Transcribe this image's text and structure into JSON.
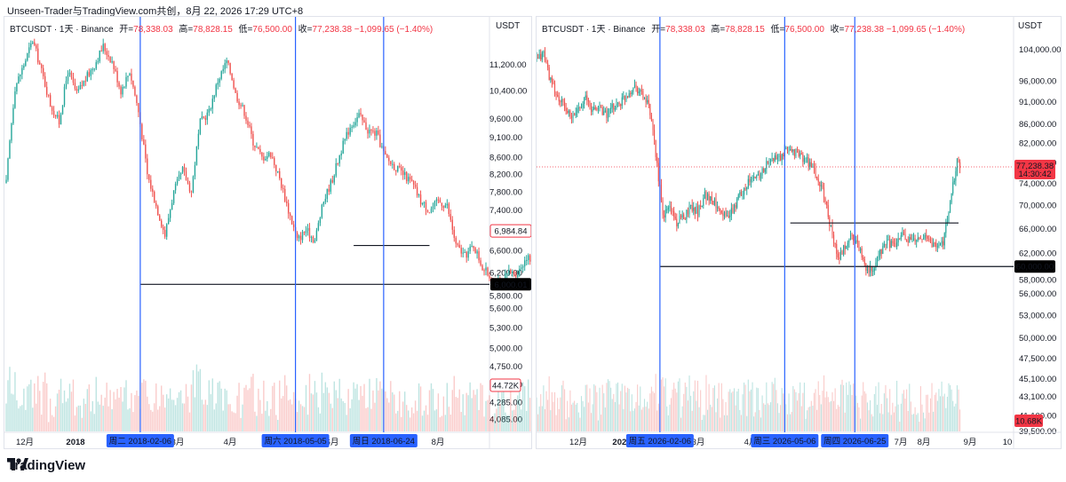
{
  "header": {
    "text": "Unseen-Trader与TradingView.com共创，8月 22, 2026 17:29 UTC+8"
  },
  "brand": {
    "name": "TradingView"
  },
  "colors": {
    "up": "#26a69a",
    "down": "#ef5350",
    "vline": "#2962ff",
    "hline": "#131722",
    "bg": "#ffffff",
    "last": "#f23645"
  },
  "chart_data": [
    {
      "type": "candlestick",
      "symbol": "BTCUSDT · 1天 · Binance",
      "ohlc_text": {
        "o_label": "开=",
        "o": "78,338.03",
        "h_label": "高=",
        "h": "78,828.15",
        "l_label": "低=",
        "l": "76,500.00",
        "c_label": "收=",
        "c": "77,238.38",
        "chg": "−1,099.65 (−1.40%)"
      },
      "unit": "USDT",
      "y_scale": "log",
      "ylim": [
        3950,
        12200
      ],
      "y_ticks": [
        11200,
        10400,
        9600,
        9100,
        8600,
        8200,
        7800,
        7400,
        7000,
        6600,
        6200,
        5800,
        5600,
        5300,
        5000,
        4750,
        4510,
        4285,
        4085
      ],
      "y_tick_labels": [
        "11,200.00",
        "10,400.00",
        "9,600.00",
        "9,100.00",
        "8,600.00",
        "8,200.00",
        "7,800.00",
        "7,400.00",
        "7,000.00",
        "6,600.00",
        "6,200.00",
        "5,800.00",
        "5,600.00",
        "5,300.00",
        "5,000.00",
        "4,750.00",
        "4,510.00",
        "4,285.00",
        "4,085.00"
      ],
      "x_ticks": [
        "12月",
        "2018",
        "3月",
        "4月",
        "5月",
        "6月",
        "7月",
        "8月"
      ],
      "x_tick_bold": [
        false,
        true,
        false,
        false,
        false,
        false,
        false,
        false
      ],
      "date_range": [
        "2017-11-22",
        "2018-08-22"
      ],
      "close_path": [
        [
          0,
          8000
        ],
        [
          5,
          10500
        ],
        [
          10,
          11200
        ],
        [
          15,
          12000
        ],
        [
          20,
          11000
        ],
        [
          25,
          10000
        ],
        [
          30,
          9500
        ],
        [
          35,
          11000
        ],
        [
          40,
          10300
        ],
        [
          50,
          11200
        ],
        [
          55,
          11800
        ],
        [
          60,
          11300
        ],
        [
          65,
          10400
        ],
        [
          70,
          11000
        ],
        [
          75,
          9800
        ],
        [
          80,
          8200
        ],
        [
          85,
          7500
        ],
        [
          90,
          6900
        ],
        [
          95,
          7800
        ],
        [
          100,
          8300
        ],
        [
          105,
          7800
        ],
        [
          110,
          9500
        ],
        [
          115,
          9800
        ],
        [
          120,
          10700
        ],
        [
          125,
          11300
        ],
        [
          128,
          10800
        ],
        [
          130,
          10300
        ],
        [
          135,
          9800
        ],
        [
          140,
          9000
        ],
        [
          145,
          8600
        ],
        [
          150,
          8700
        ],
        [
          155,
          8100
        ],
        [
          160,
          7400
        ],
        [
          165,
          6800
        ],
        [
          170,
          7000
        ],
        [
          175,
          6800
        ],
        [
          180,
          7600
        ],
        [
          185,
          8100
        ],
        [
          190,
          8800
        ],
        [
          195,
          9400
        ],
        [
          200,
          9700
        ],
        [
          205,
          9300
        ],
        [
          210,
          9200
        ],
        [
          215,
          8600
        ],
        [
          220,
          8400
        ],
        [
          225,
          8200
        ],
        [
          230,
          8000
        ],
        [
          235,
          7600
        ],
        [
          240,
          7400
        ],
        [
          245,
          7600
        ],
        [
          250,
          7500
        ],
        [
          255,
          6700
        ],
        [
          260,
          6500
        ],
        [
          265,
          6700
        ],
        [
          270,
          6300
        ],
        [
          275,
          6100
        ],
        [
          280,
          6000
        ],
        [
          285,
          6200
        ],
        [
          290,
          6200
        ],
        [
          295,
          6500
        ],
        [
          300,
          6300
        ],
        [
          305,
          6800
        ],
        [
          310,
          7400
        ],
        [
          315,
          8100
        ],
        [
          320,
          8300
        ],
        [
          325,
          7700
        ],
        [
          330,
          7300
        ],
        [
          335,
          6900
        ],
        [
          340,
          6300
        ],
        [
          345,
          6400
        ],
        [
          350,
          6400
        ],
        [
          355,
          6600
        ],
        [
          360,
          6900
        ],
        [
          365,
          6984
        ]
      ],
      "volume_range": [
        0,
        1
      ],
      "vertical_markers": [
        {
          "x": "2018-02-06",
          "label": "周二 2018-02-06"
        },
        {
          "x": "2018-05-05",
          "label": "周六 2018-05-05"
        },
        {
          "x": "2018-06-24",
          "label": "周日 2018-06-24"
        }
      ],
      "horizontal_lines": [
        {
          "y": 6000.01,
          "from": "2018-02-06",
          "label": "6,000.01"
        },
        {
          "y": 6700,
          "from": "2018-06-07",
          "to": "2018-07-20"
        }
      ],
      "last_price_label": "6,984.84",
      "volume_label": "44.72K"
    },
    {
      "type": "candlestick",
      "symbol": "BTCUSDT · 1天 · Binance",
      "ohlc_text": {
        "o_label": "开=",
        "o": "78,338.03",
        "h_label": "高=",
        "h": "78,828.15",
        "l_label": "低=",
        "l": "76,500.00",
        "c_label": "收=",
        "c": "77,238.38",
        "chg": "−1,099.65 (−1.40%)"
      },
      "unit": "USDT",
      "y_scale": "log",
      "ylim": [
        39500,
        108000
      ],
      "y_ticks": [
        104000,
        96000,
        91000,
        86000,
        82000,
        78000,
        74000,
        70000,
        66000,
        62000,
        58000,
        56000,
        53000,
        50000,
        47500,
        45100,
        43100,
        41100,
        39500
      ],
      "y_tick_labels": [
        "104,000.00",
        "96,000.00",
        "91,000.00",
        "86,000.00",
        "82,000.00",
        "78,000.00",
        "74,000.00",
        "70,000.00",
        "66,000.00",
        "62,000.00",
        "58,000.00",
        "56,000.00",
        "53,000.00",
        "50,000.00",
        "47,500.00",
        "45,100.00",
        "43,100.00",
        "41,100.00",
        "39,500.00"
      ],
      "x_ticks": [
        "12月",
        "2026",
        "3月",
        "4月",
        "5月",
        "6月",
        "7月",
        "8月",
        "9月",
        "10"
      ],
      "x_tick_bold": [
        false,
        true,
        false,
        false,
        false,
        false,
        false,
        false,
        false,
        false
      ],
      "date_range": [
        "2025-11-10",
        "2026-10-15"
      ],
      "close_path": [
        [
          0,
          101000
        ],
        [
          5,
          103000
        ],
        [
          10,
          96000
        ],
        [
          15,
          92000
        ],
        [
          20,
          90000
        ],
        [
          25,
          87000
        ],
        [
          30,
          90000
        ],
        [
          35,
          92000
        ],
        [
          40,
          89000
        ],
        [
          45,
          90000
        ],
        [
          50,
          88000
        ],
        [
          55,
          90000
        ],
        [
          60,
          91000
        ],
        [
          65,
          93000
        ],
        [
          70,
          95000
        ],
        [
          75,
          93000
        ],
        [
          80,
          90000
        ],
        [
          85,
          80000
        ],
        [
          88,
          73000
        ],
        [
          90,
          68000
        ],
        [
          95,
          70000
        ],
        [
          100,
          67000
        ],
        [
          105,
          68000
        ],
        [
          110,
          70000
        ],
        [
          115,
          69000
        ],
        [
          120,
          72000
        ],
        [
          125,
          71000
        ],
        [
          130,
          70000
        ],
        [
          135,
          68000
        ],
        [
          140,
          69000
        ],
        [
          145,
          72000
        ],
        [
          150,
          74000
        ],
        [
          155,
          75000
        ],
        [
          160,
          76000
        ],
        [
          165,
          78000
        ],
        [
          170,
          79000
        ],
        [
          175,
          79000
        ],
        [
          180,
          81000
        ],
        [
          185,
          80000
        ],
        [
          190,
          79000
        ],
        [
          195,
          78000
        ],
        [
          200,
          75000
        ],
        [
          205,
          72000
        ],
        [
          210,
          66000
        ],
        [
          215,
          61000
        ],
        [
          220,
          63000
        ],
        [
          225,
          65000
        ],
        [
          230,
          63000
        ],
        [
          235,
          60000
        ],
        [
          240,
          59000
        ],
        [
          245,
          62000
        ],
        [
          250,
          64000
        ],
        [
          255,
          63000
        ],
        [
          260,
          65000
        ],
        [
          265,
          64000
        ],
        [
          270,
          64000
        ],
        [
          275,
          65000
        ],
        [
          280,
          64000
        ],
        [
          285,
          63000
        ],
        [
          290,
          64000
        ],
        [
          295,
          70000
        ],
        [
          300,
          78500
        ],
        [
          302,
          77238
        ]
      ],
      "vertical_markers": [
        {
          "x": "2026-02-06",
          "label": "周五 2026-02-06"
        },
        {
          "x": "2026-05-06",
          "label": "周三 2026-05-06"
        },
        {
          "x": "2026-06-25",
          "label": "周四 2026-06-25"
        }
      ],
      "horizontal_lines": [
        {
          "y": 60000,
          "from": "2026-02-06",
          "label": "60,000.00"
        },
        {
          "y": 67000,
          "from": "2026-05-10",
          "to": "2026-09-07"
        }
      ],
      "price_line": 77238.38,
      "last_price_label": "77,238.38",
      "countdown_label": "14:30:42",
      "volume_label": "10.68K"
    }
  ]
}
